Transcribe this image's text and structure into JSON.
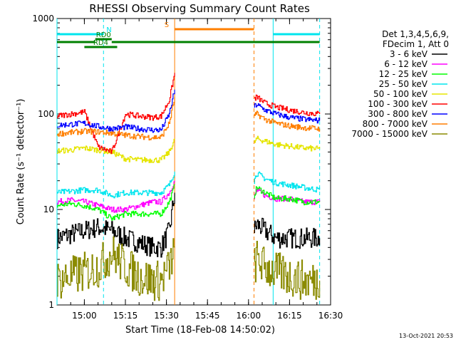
{
  "chart_data": {
    "type": "line",
    "title": "RHESSI Observing Summary Count Rates",
    "xlabel": "Start Time (18-Feb-08 14:50:02)",
    "ylabel": "Count Rate (s⁻¹ detector⁻¹)",
    "x_range": [
      "14:50",
      "16:30"
    ],
    "ylim": [
      1,
      1000
    ],
    "y_scale": "log",
    "x_ticks": [
      "15:00",
      "15:15",
      "15:30",
      "15:45",
      "16:00",
      "16:15",
      "16:30"
    ],
    "y_ticks": [
      "1",
      "10",
      "100",
      "1000"
    ],
    "legend_header": [
      "Det 1,3,4,5,6,9,",
      "FDecim 1, Att 0"
    ],
    "legend_position": "right",
    "data_gaps": [
      [
        "15:34",
        "16:02"
      ]
    ],
    "vertical_markers": [
      {
        "time": "14:50",
        "color": "#00e5ee",
        "style": "solid"
      },
      {
        "time": "15:07",
        "color": "#00e5ee",
        "style": "dashed"
      },
      {
        "time": "16:09",
        "color": "#00e5ee",
        "style": "solid"
      },
      {
        "time": "16:26",
        "color": "#00e5ee",
        "style": "dashed"
      },
      {
        "time": "15:33",
        "color": "#ff7f00",
        "style": "solid"
      },
      {
        "time": "16:02",
        "color": "#ff7f00",
        "style": "dashed"
      }
    ],
    "state_bars": [
      {
        "label": "N",
        "start": "14:50",
        "end": "15:07",
        "color": "#00e5ee",
        "level": 1
      },
      {
        "label": "",
        "start": "16:09",
        "end": "16:26",
        "color": "#00e5ee",
        "level": 1
      },
      {
        "label": "S",
        "start": "15:33",
        "end": "16:02",
        "color": "#ff7f00",
        "level": 0
      },
      {
        "label": "RD0",
        "start": "15:04",
        "end": "15:10",
        "color": "#008000",
        "level": 2
      },
      {
        "label": "",
        "start": "14:50",
        "end": "15:04",
        "color": "#008000",
        "level": 3
      },
      {
        "label": "",
        "start": "15:10",
        "end": "16:26",
        "color": "#008000",
        "level": 3
      },
      {
        "label": "RD4",
        "start": "15:00",
        "end": "15:12",
        "color": "#008000",
        "level": 4
      }
    ],
    "series": [
      {
        "name": "3 - 6 keV",
        "color": "#000000",
        "segments": [
          {
            "x": [
              "14:50",
              "14:55",
              "15:00",
              "15:05",
              "15:10",
              "15:15",
              "15:20",
              "15:25",
              "15:28",
              "15:31",
              "15:33"
            ],
            "y": [
              5,
              5.5,
              6,
              6.5,
              6,
              5,
              4.5,
              4,
              4,
              6,
              15
            ]
          },
          {
            "x": [
              "16:02",
              "16:03",
              "16:06",
              "16:10",
              "16:15",
              "16:20",
              "16:26"
            ],
            "y": [
              6,
              7,
              6,
              5,
              5,
              5,
              5
            ]
          }
        ]
      },
      {
        "name": "6 - 12 keV",
        "color": "#ff00ff",
        "segments": [
          {
            "x": [
              "14:50",
              "14:55",
              "15:00",
              "15:05",
              "15:10",
              "15:15",
              "15:20",
              "15:25",
              "15:28",
              "15:31",
              "15:33"
            ],
            "y": [
              12,
              12.5,
              12,
              11,
              10,
              10,
              11,
              12,
              12,
              15,
              20
            ]
          },
          {
            "x": [
              "16:02",
              "16:03",
              "16:06",
              "16:10",
              "16:15",
              "16:20",
              "16:26"
            ],
            "y": [
              13,
              16,
              14,
              13,
              13,
              12,
              12
            ]
          }
        ]
      },
      {
        "name": "12 - 25 keV",
        "color": "#00ff00",
        "segments": [
          {
            "x": [
              "14:50",
              "14:55",
              "15:00",
              "15:05",
              "15:10",
              "15:15",
              "15:20",
              "15:25",
              "15:28",
              "15:31",
              "15:33"
            ],
            "y": [
              11,
              11.5,
              11,
              10,
              8,
              9,
              9,
              9,
              9,
              12,
              18
            ]
          },
          {
            "x": [
              "16:02",
              "16:03",
              "16:06",
              "16:10",
              "16:15",
              "16:20",
              "16:26"
            ],
            "y": [
              14,
              17,
              15,
              13,
              13,
              12,
              12
            ]
          }
        ]
      },
      {
        "name": "25 - 50 keV",
        "color": "#00e5ee",
        "segments": [
          {
            "x": [
              "14:50",
              "14:55",
              "15:00",
              "15:05",
              "15:10",
              "15:15",
              "15:20",
              "15:25",
              "15:28",
              "15:31",
              "15:33"
            ],
            "y": [
              15,
              15.5,
              16,
              16,
              14,
              15,
              15,
              15,
              15,
              18,
              25
            ]
          },
          {
            "x": [
              "16:02",
              "16:03",
              "16:06",
              "16:10",
              "16:15",
              "16:20",
              "16:26"
            ],
            "y": [
              20,
              24,
              21,
              19,
              18,
              17,
              16
            ]
          }
        ]
      },
      {
        "name": "50 - 100 keV",
        "color": "#e5e500",
        "segments": [
          {
            "x": [
              "14:50",
              "14:55",
              "15:00",
              "15:05",
              "15:10",
              "15:15",
              "15:20",
              "15:25",
              "15:28",
              "15:31",
              "15:33"
            ],
            "y": [
              41,
              42,
              44,
              42,
              40,
              34,
              33,
              33,
              33,
              40,
              55
            ]
          },
          {
            "x": [
              "16:02",
              "16:03",
              "16:06",
              "16:10",
              "16:15",
              "16:20",
              "16:26"
            ],
            "y": [
              50,
              55,
              52,
              48,
              46,
              44,
              43
            ]
          }
        ]
      },
      {
        "name": "100 - 300 keV",
        "color": "#ff0000",
        "segments": [
          {
            "x": [
              "14:50",
              "14:55",
              "15:00",
              "15:05",
              "15:10",
              "15:15",
              "15:20",
              "15:25",
              "15:28",
              "15:31",
              "15:33"
            ],
            "y": [
              95,
              100,
              105,
              45,
              40,
              100,
              95,
              92,
              95,
              140,
              270
            ]
          },
          {
            "x": [
              "16:02",
              "16:03",
              "16:06",
              "16:10",
              "16:15",
              "16:20",
              "16:26"
            ],
            "y": [
              145,
              150,
              130,
              118,
              110,
              104,
              100
            ]
          }
        ]
      },
      {
        "name": "300 - 800 keV",
        "color": "#0000ff",
        "segments": [
          {
            "x": [
              "14:50",
              "14:55",
              "15:00",
              "15:05",
              "15:10",
              "15:15",
              "15:20",
              "15:25",
              "15:28",
              "15:31",
              "15:33"
            ],
            "y": [
              76,
              78,
              80,
              74,
              70,
              73,
              70,
              68,
              68,
              100,
              180
            ]
          },
          {
            "x": [
              "16:02",
              "16:03",
              "16:06",
              "16:10",
              "16:15",
              "16:20",
              "16:26"
            ],
            "y": [
              120,
              125,
              110,
              100,
              92,
              88,
              85
            ]
          }
        ]
      },
      {
        "name": "800 - 7000 keV",
        "color": "#ff7f00",
        "segments": [
          {
            "x": [
              "14:50",
              "14:55",
              "15:00",
              "15:05",
              "15:10",
              "15:15",
              "15:20",
              "15:25",
              "15:28",
              "15:31",
              "15:33"
            ],
            "y": [
              62,
              64,
              66,
              65,
              63,
              60,
              58,
              57,
              57,
              80,
              150
            ]
          },
          {
            "x": [
              "16:02",
              "16:03",
              "16:06",
              "16:10",
              "16:15",
              "16:20",
              "16:26"
            ],
            "y": [
              95,
              100,
              88,
              80,
              75,
              72,
              70
            ]
          }
        ]
      },
      {
        "name": "7000 - 15000 keV",
        "color": "#8b8b00",
        "segments": [
          {
            "x": [
              "14:50",
              "14:55",
              "15:00",
              "15:05",
              "15:10",
              "15:15",
              "15:20",
              "15:25",
              "15:28",
              "15:31",
              "15:33"
            ],
            "y": [
              1.8,
              2.0,
              2.2,
              2.5,
              3.5,
              2.5,
              2.0,
              1.8,
              1.8,
              2.5,
              4
            ]
          },
          {
            "x": [
              "16:02",
              "16:03",
              "16:06",
              "16:10",
              "16:15",
              "16:20",
              "16:26"
            ],
            "y": [
              2.5,
              3,
              2.5,
              2.2,
              2.0,
              1.8,
              1.8
            ]
          }
        ]
      }
    ]
  },
  "footer": {
    "timestamp": "13-Oct-2021 20:53"
  }
}
